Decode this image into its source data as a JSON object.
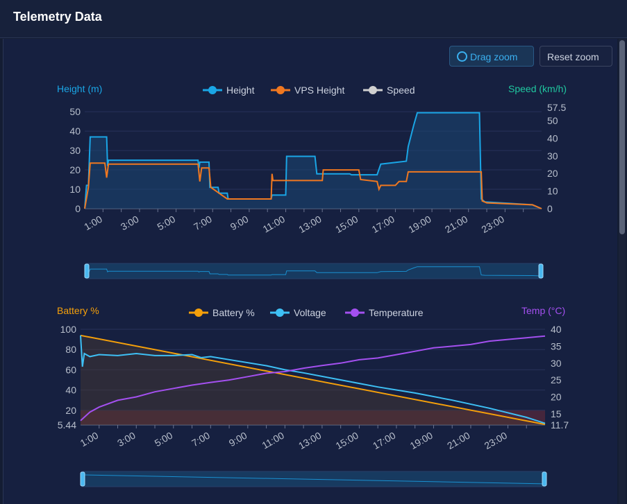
{
  "header": {
    "title": "Telemetry Data"
  },
  "toolbar": {
    "drag_zoom": "Drag zoom",
    "reset_zoom": "Reset zoom",
    "drag_icon": "magnifier-icon"
  },
  "colors": {
    "height": "#1aa6e6",
    "vps": "#f07820",
    "speed": "#d0d0d0",
    "battery": "#f5a00a",
    "voltage": "#3ec0f5",
    "temperature": "#a450f0",
    "low_zone": "#5a2a3a"
  },
  "chart_data": [
    {
      "type": "line",
      "xlabel": "",
      "left_axis": "Height (m)",
      "right_axis": "Speed (km/h)",
      "ylim_left": [
        0,
        52.2
      ],
      "ylim_right": [
        0,
        57.5
      ],
      "left_ticks": [
        "0",
        "10",
        "20",
        "30",
        "40",
        "50"
      ],
      "right_ticks": [
        "0",
        "10",
        "20",
        "30",
        "40",
        "50",
        "57.5"
      ],
      "xlim_hours": [
        0,
        25
      ],
      "x_ticks": [
        "1:00",
        "3:00",
        "5:00",
        "7:00",
        "9:00",
        "11:00",
        "13:00",
        "15:00",
        "17:00",
        "19:00",
        "21:00",
        "23:00"
      ],
      "series": [
        {
          "name": "Height",
          "axis": "left",
          "x": [
            0,
            0.1,
            0.2,
            0.3,
            1.2,
            1.25,
            1.3,
            6.2,
            6.25,
            6.3,
            6.8,
            6.85,
            7.3,
            7.35,
            7.8,
            7.85,
            10.2,
            10.25,
            11.0,
            11.05,
            12.6,
            12.7,
            14.5,
            14.6,
            16.0,
            16.2,
            17.6,
            17.7,
            18.0,
            18.2,
            21.6,
            21.7,
            21.9,
            24.5,
            25
          ],
          "y": [
            0,
            12,
            12,
            37,
            37,
            22,
            25,
            25,
            21,
            24,
            24,
            11,
            11,
            8,
            8,
            5,
            5,
            7,
            7,
            27,
            27,
            18,
            18,
            17.5,
            17.5,
            23,
            24.5,
            32,
            43,
            49.5,
            49.5,
            5,
            3.5,
            2,
            0
          ]
        },
        {
          "name": "VPS Height",
          "axis": "left",
          "x": [
            0,
            0.2,
            0.3,
            1.1,
            1.2,
            1.3,
            6.2,
            6.3,
            6.4,
            6.8,
            6.9,
            7.5,
            7.8,
            10.2,
            10.25,
            10.3,
            13.0,
            13.05,
            15.0,
            15.1,
            16.0,
            16.1,
            16.2,
            17.0,
            17.2,
            17.6,
            17.7,
            21.7,
            21.75,
            22,
            24.5,
            25
          ],
          "y": [
            0,
            11,
            23.5,
            23.5,
            16,
            23,
            23,
            14,
            21,
            21,
            11,
            7,
            5,
            5,
            18,
            14.5,
            14.5,
            20,
            20,
            15,
            14,
            10,
            12,
            12,
            14,
            14,
            19,
            19,
            4,
            3,
            2,
            0
          ]
        },
        {
          "name": "Speed",
          "axis": "right",
          "x": [],
          "y": []
        }
      ]
    },
    {
      "type": "line",
      "xlabel": "",
      "left_axis": "Battery %",
      "right_axis": "Temp (°C)",
      "ylim_left": [
        5.44,
        100
      ],
      "ylim_right": [
        11.7,
        40
      ],
      "left_ticks": [
        "5.44",
        "20",
        "40",
        "60",
        "80",
        "100"
      ],
      "right_ticks": [
        "11.7",
        "15",
        "20",
        "25",
        "30",
        "35",
        "40"
      ],
      "xlim_hours": [
        0,
        25
      ],
      "x_ticks": [
        "1:00",
        "3:00",
        "5:00",
        "7:00",
        "9:00",
        "11:00",
        "13:00",
        "15:00",
        "17:00",
        "19:00",
        "21:00",
        "23:00"
      ],
      "low_zone": [
        5.44,
        20
      ],
      "series": [
        {
          "name": "Battery %",
          "axis": "left",
          "x": [
            0,
            25
          ],
          "y": [
            94,
            6
          ]
        },
        {
          "name": "Voltage",
          "axis": "left",
          "x": [
            0,
            0.1,
            0.2,
            0.5,
            1,
            2,
            3,
            4,
            5,
            6,
            6.5,
            7,
            8,
            10,
            11,
            12,
            14,
            16,
            18,
            20,
            22,
            24,
            25
          ],
          "y": [
            94,
            63,
            76,
            73,
            75,
            74,
            76,
            74,
            74,
            75,
            72,
            73,
            70,
            64,
            60,
            57,
            50,
            43,
            37,
            30,
            22,
            13,
            7
          ]
        },
        {
          "name": "Temperature",
          "axis": "right",
          "x": [
            0,
            0.5,
            1,
            2,
            3,
            4,
            5,
            6,
            7,
            8,
            9,
            10,
            11,
            12,
            13,
            14,
            15,
            16,
            17,
            18,
            19,
            20,
            21,
            22,
            23,
            24,
            25
          ],
          "y": [
            13,
            15.5,
            17,
            19,
            20,
            21.5,
            22.5,
            23.5,
            24.3,
            25,
            26,
            27,
            27.5,
            28.5,
            29.3,
            30,
            31,
            31.5,
            32.5,
            33.5,
            34.5,
            35,
            35.5,
            36.5,
            37,
            37.5,
            38
          ]
        }
      ]
    }
  ]
}
